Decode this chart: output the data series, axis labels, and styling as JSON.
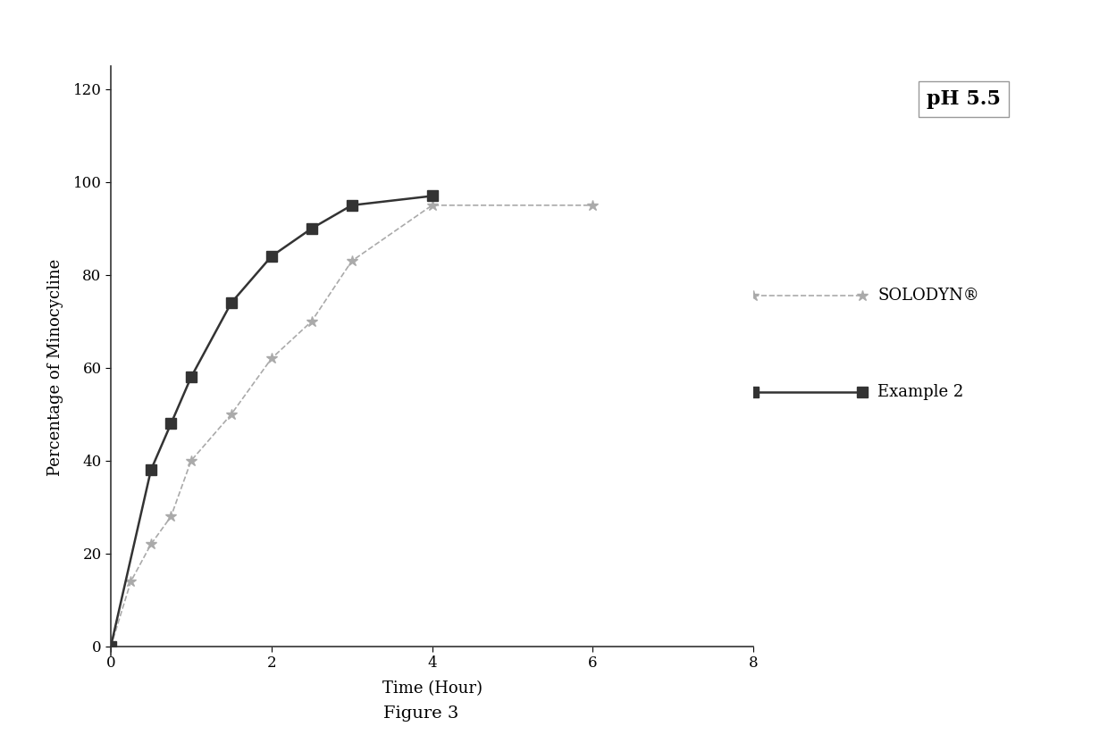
{
  "solodyn_x": [
    0,
    0.25,
    0.5,
    0.75,
    1.0,
    1.5,
    2.0,
    2.5,
    3.0,
    4.0,
    6.0
  ],
  "solodyn_y": [
    0,
    14,
    22,
    28,
    40,
    50,
    62,
    70,
    83,
    95,
    95
  ],
  "example2_x": [
    0,
    0.5,
    0.75,
    1.0,
    1.5,
    2.0,
    2.5,
    3.0,
    4.0
  ],
  "example2_y": [
    0,
    38,
    48,
    58,
    74,
    84,
    90,
    95,
    97
  ],
  "solodyn_color": "#aaaaaa",
  "example2_color": "#333333",
  "solodyn_label": "SOLODYN®",
  "example2_label": "Example 2",
  "xlabel": "Time (Hour)",
  "ylabel": "Percentage of Minocycline",
  "ph_label": "pH 5.5",
  "figure_caption": "Figure 3",
  "xlim": [
    0,
    8
  ],
  "ylim": [
    0,
    120
  ],
  "xticks": [
    0,
    2,
    4,
    6,
    8
  ],
  "yticks": [
    0,
    20,
    40,
    60,
    80,
    100,
    120
  ],
  "background_color": "#ffffff"
}
